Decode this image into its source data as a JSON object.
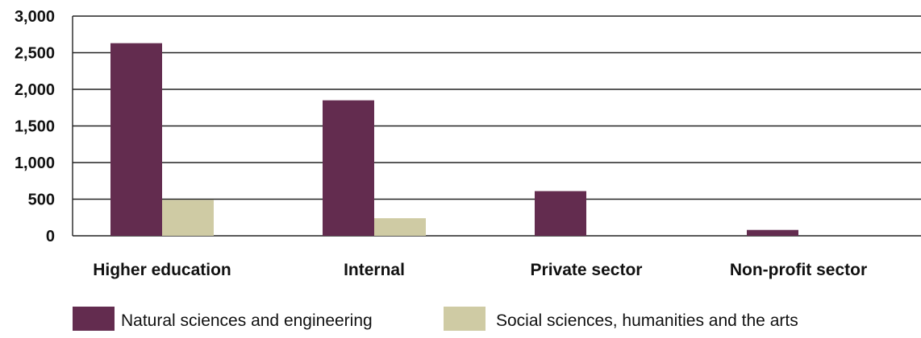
{
  "chart_data": {
    "type": "bar",
    "title": "",
    "xlabel": "",
    "ylabel": "",
    "categories": [
      "Higher education",
      "Internal",
      "Private sector",
      "Non-profit sector"
    ],
    "series": [
      {
        "name": "Natural sciences and engineering",
        "color": "#632c4f",
        "values": [
          2630,
          1850,
          610,
          80
        ]
      },
      {
        "name": "Social sciences, humanities and the arts",
        "color": "#cfcba4",
        "values": [
          490,
          240,
          0,
          0
        ]
      }
    ],
    "ylim": [
      0,
      3000
    ],
    "yticks": [
      "0",
      "500",
      "1,000",
      "1,500",
      "2,000",
      "2,500",
      "3,000"
    ],
    "ytick_values": [
      0,
      500,
      1000,
      1500,
      2000,
      2500,
      3000
    ],
    "grid": true,
    "legend_position": "bottom"
  }
}
